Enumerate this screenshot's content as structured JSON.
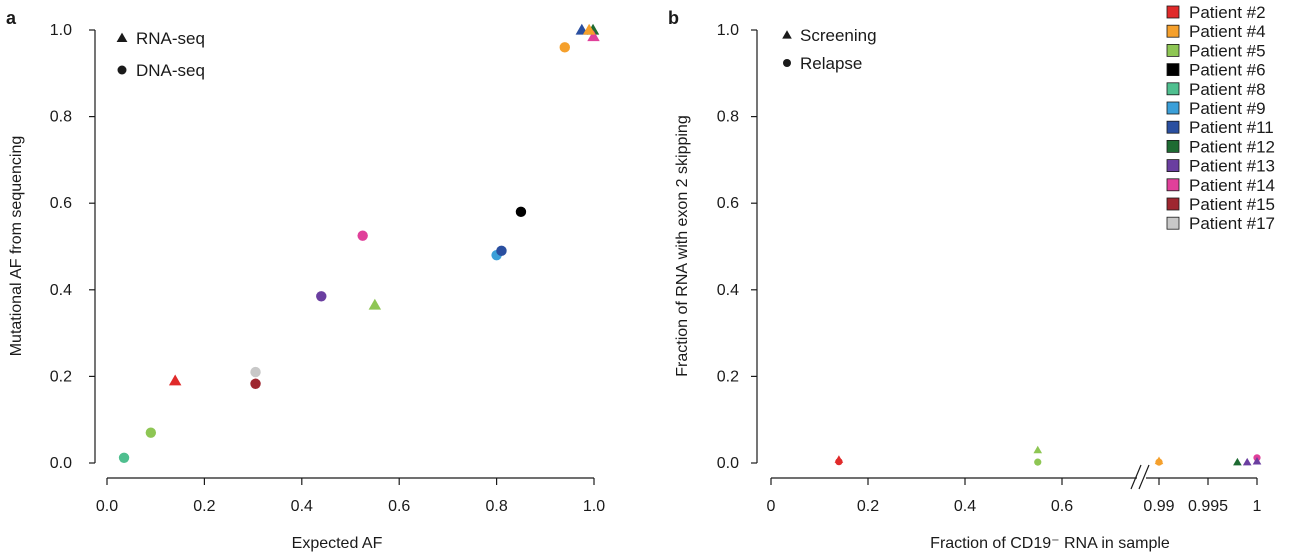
{
  "chart_data": [
    {
      "type": "scatter",
      "panel": "a",
      "xlabel": "Expected AF",
      "ylabel": "Mutational AF from sequencing",
      "xlim": [
        0,
        1
      ],
      "ylim": [
        0,
        1
      ],
      "xticks": [
        "0.0",
        "0.2",
        "0.4",
        "0.6",
        "0.8",
        "1.0"
      ],
      "yticks": [
        "0.0",
        "0.2",
        "0.4",
        "0.6",
        "0.8",
        "1.0"
      ],
      "marker_legend": [
        {
          "shape": "triangle",
          "label": "RNA-seq"
        },
        {
          "shape": "circle",
          "label": "DNA-seq"
        }
      ],
      "points": [
        {
          "patient": "Patient #2",
          "shape": "triangle",
          "x": 0.14,
          "y": 0.19
        },
        {
          "patient": "Patient #4",
          "shape": "circle",
          "x": 0.94,
          "y": 0.96
        },
        {
          "patient": "Patient #5",
          "shape": "circle",
          "x": 0.09,
          "y": 0.07
        },
        {
          "patient": "Patient #5",
          "shape": "triangle",
          "x": 0.55,
          "y": 0.365
        },
        {
          "patient": "Patient #6",
          "shape": "circle",
          "x": 0.85,
          "y": 0.58
        },
        {
          "patient": "Patient #8",
          "shape": "circle",
          "x": 0.035,
          "y": 0.012
        },
        {
          "patient": "Patient #9",
          "shape": "circle",
          "x": 0.8,
          "y": 0.48
        },
        {
          "patient": "Patient #11",
          "shape": "circle",
          "x": 0.81,
          "y": 0.49
        },
        {
          "patient": "Patient #11",
          "shape": "triangle",
          "x": 0.975,
          "y": 1.0
        },
        {
          "patient": "Patient #12",
          "shape": "triangle",
          "x": 0.998,
          "y": 1.0
        },
        {
          "patient": "Patient #13",
          "shape": "circle",
          "x": 0.44,
          "y": 0.385
        },
        {
          "patient": "Patient #14",
          "shape": "circle",
          "x": 0.525,
          "y": 0.525
        },
        {
          "patient": "Patient #14",
          "shape": "triangle",
          "x": 0.999,
          "y": 0.985
        },
        {
          "patient": "Patient #4",
          "shape": "triangle",
          "x": 0.99,
          "y": 1.0
        },
        {
          "patient": "Patient #15",
          "shape": "circle",
          "x": 0.305,
          "y": 0.183
        },
        {
          "patient": "Patient #17",
          "shape": "circle",
          "x": 0.305,
          "y": 0.21
        }
      ]
    },
    {
      "type": "scatter",
      "panel": "b",
      "xlabel": "Fraction of CD19⁻ RNA in sample",
      "ylabel": "Fraction of RNA with exon 2 skipping",
      "ylim": [
        0,
        1
      ],
      "x_axis_break": true,
      "x_segments": [
        {
          "range": [
            0,
            0.8
          ],
          "ticks": [
            0,
            0.2,
            0.4,
            0.6
          ],
          "tick_labels": [
            "0",
            "0.2",
            "0.4",
            "0.6"
          ]
        },
        {
          "range": [
            0.99,
            1.0
          ],
          "ticks": [
            0.99,
            0.995,
            1.0
          ],
          "tick_labels": [
            "0.99",
            "0.995",
            "1"
          ]
        }
      ],
      "yticks": [
        "0.0",
        "0.2",
        "0.4",
        "0.6",
        "0.8",
        "1.0"
      ],
      "marker_legend": [
        {
          "shape": "triangle",
          "label": "Screening"
        },
        {
          "shape": "circle",
          "label": "Relapse"
        }
      ],
      "points": [
        {
          "patient": "Patient #2",
          "shape": "triangle",
          "x": 0.14,
          "y": 0.008
        },
        {
          "patient": "Patient #2",
          "shape": "circle",
          "x": 0.14,
          "y": 0.003
        },
        {
          "patient": "Patient #5",
          "shape": "triangle",
          "x": 0.55,
          "y": 0.03
        },
        {
          "patient": "Patient #5",
          "shape": "circle",
          "x": 0.55,
          "y": 0.002
        },
        {
          "patient": "Patient #4",
          "shape": "triangle",
          "x": 0.99,
          "y": 0.005
        },
        {
          "patient": "Patient #4",
          "shape": "circle",
          "x": 0.99,
          "y": 0.002
        },
        {
          "patient": "Patient #12",
          "shape": "triangle",
          "x": 0.998,
          "y": 0.002
        },
        {
          "patient": "Patient #13",
          "shape": "triangle",
          "x": 0.999,
          "y": 0.002
        },
        {
          "patient": "Patient #14",
          "shape": "circle",
          "x": 1.0,
          "y": 0.012
        },
        {
          "patient": "Patient #13",
          "shape": "triangle",
          "x": 1.0,
          "y": 0.004
        }
      ]
    }
  ],
  "legend": {
    "patients": [
      {
        "label": "Patient #2",
        "color": "#e02a2a"
      },
      {
        "label": "Patient #4",
        "color": "#f5a02c"
      },
      {
        "label": "Patient #5",
        "color": "#8ec654"
      },
      {
        "label": "Patient #6",
        "color": "#000000"
      },
      {
        "label": "Patient #8",
        "color": "#4fbf8f"
      },
      {
        "label": "Patient #9",
        "color": "#3b9fd8"
      },
      {
        "label": "Patient #11",
        "color": "#2a4fa0"
      },
      {
        "label": "Patient #12",
        "color": "#1e6b32"
      },
      {
        "label": "Patient #13",
        "color": "#6a3ea0"
      },
      {
        "label": "Patient #14",
        "color": "#e0409a"
      },
      {
        "label": "Patient #15",
        "color": "#9e2730"
      },
      {
        "label": "Patient #17",
        "color": "#c8c8c8"
      }
    ]
  }
}
